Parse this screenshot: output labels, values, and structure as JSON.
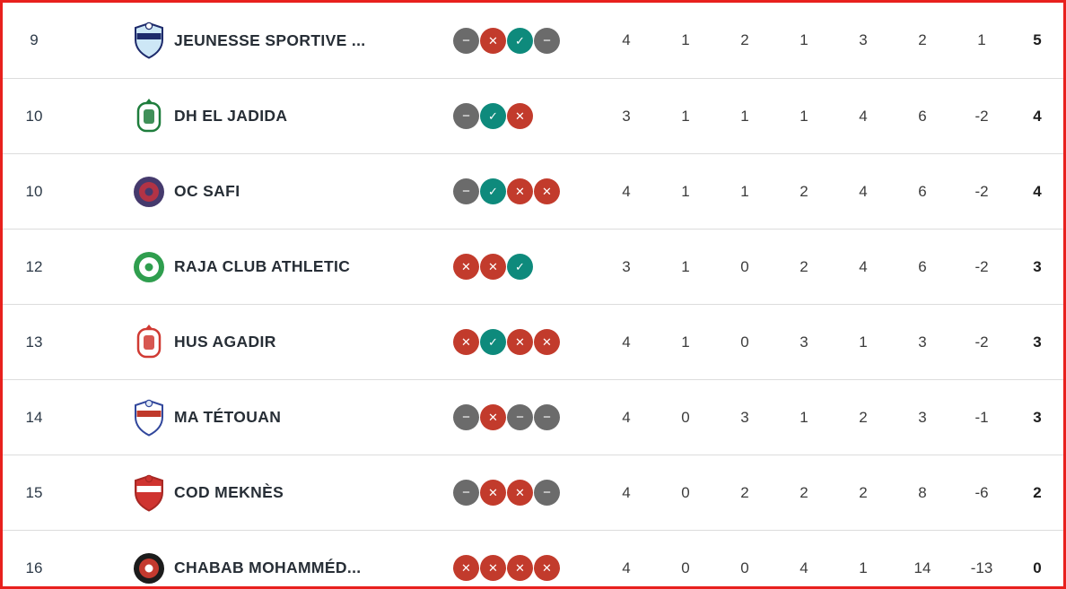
{
  "page": {
    "border_color": "#e8201d",
    "background": "#ffffff",
    "separator_color": "#dcdcdc"
  },
  "legend": {
    "win_symbol": "✓",
    "loss_symbol": "✕",
    "draw_symbol": "−"
  },
  "colors": {
    "win": "#0e8a7c",
    "loss": "#c23b2c",
    "draw": "#6b6b6b"
  },
  "standings": {
    "rows": [
      {
        "rank": "9",
        "club": "JEUNESSE SPORTIVE ...",
        "logo": "js-soualem-crest",
        "form": [
          "draw",
          "loss",
          "win",
          "draw"
        ],
        "played": "4",
        "wins": "1",
        "draws": "2",
        "losses": "1",
        "goals_for": "3",
        "goals_against": "2",
        "goal_diff": "1",
        "points": "5"
      },
      {
        "rank": "10",
        "club": "DH EL JADIDA",
        "logo": "dh-el-jadida-crest",
        "form": [
          "draw",
          "win",
          "loss"
        ],
        "played": "3",
        "wins": "1",
        "draws": "1",
        "losses": "1",
        "goals_for": "4",
        "goals_against": "6",
        "goal_diff": "-2",
        "points": "4"
      },
      {
        "rank": "10",
        "club": "OC SAFI",
        "logo": "oc-safi-crest",
        "form": [
          "draw",
          "win",
          "loss",
          "loss"
        ],
        "played": "4",
        "wins": "1",
        "draws": "1",
        "losses": "2",
        "goals_for": "4",
        "goals_against": "6",
        "goal_diff": "-2",
        "points": "4"
      },
      {
        "rank": "12",
        "club": "RAJA CLUB ATHLETIC",
        "logo": "raja-crest",
        "form": [
          "loss",
          "loss",
          "win"
        ],
        "played": "3",
        "wins": "1",
        "draws": "0",
        "losses": "2",
        "goals_for": "4",
        "goals_against": "6",
        "goal_diff": "-2",
        "points": "3"
      },
      {
        "rank": "13",
        "club": "HUS AGADIR",
        "logo": "hus-agadir-crest",
        "form": [
          "loss",
          "win",
          "loss",
          "loss"
        ],
        "played": "4",
        "wins": "1",
        "draws": "0",
        "losses": "3",
        "goals_for": "1",
        "goals_against": "3",
        "goal_diff": "-2",
        "points": "3"
      },
      {
        "rank": "14",
        "club": "MA TÉTOUAN",
        "logo": "ma-tetouan-crest",
        "form": [
          "draw",
          "loss",
          "draw",
          "draw"
        ],
        "played": "4",
        "wins": "0",
        "draws": "3",
        "losses": "1",
        "goals_for": "2",
        "goals_against": "3",
        "goal_diff": "-1",
        "points": "3"
      },
      {
        "rank": "15",
        "club": "COD MEKNÈS",
        "logo": "cod-meknes-crest",
        "form": [
          "draw",
          "loss",
          "loss",
          "draw"
        ],
        "played": "4",
        "wins": "0",
        "draws": "2",
        "losses": "2",
        "goals_for": "2",
        "goals_against": "8",
        "goal_diff": "-6",
        "points": "2"
      },
      {
        "rank": "16",
        "club": "CHABAB MOHAMMÉD...",
        "logo": "chabab-mohammedia-crest",
        "form": [
          "loss",
          "loss",
          "loss",
          "loss"
        ],
        "played": "4",
        "wins": "0",
        "draws": "0",
        "losses": "4",
        "goals_for": "1",
        "goals_against": "14",
        "goal_diff": "-13",
        "points": "0"
      }
    ]
  },
  "logo_styles": {
    "js-soualem-crest": {
      "shape": "shield",
      "c1": "#cde7f6",
      "c2": "#1d2a6b",
      "c3": "#1d2a6b",
      "c4": "#ffffff"
    },
    "dh-el-jadida-crest": {
      "shape": "crest",
      "c1": "#ffffff",
      "c2": "#1e7d3c",
      "c3": "#1e7d3c",
      "c4": "#1e7d3c"
    },
    "oc-safi-crest": {
      "shape": "circle",
      "c1": "#453a6d",
      "c2": "#b23345",
      "c3": "#453a6d",
      "c4": "#b23345"
    },
    "raja-crest": {
      "shape": "circle",
      "c1": "#2f9e4e",
      "c2": "#ffffff",
      "c3": "#2f9e4e",
      "c4": "#2f9e4e"
    },
    "hus-agadir-crest": {
      "shape": "crest",
      "c1": "#ffffff",
      "c2": "#d03a33",
      "c3": "#d03a33",
      "c4": "#d03a33"
    },
    "ma-tetouan-crest": {
      "shape": "shield",
      "c1": "#ffffff",
      "c2": "#31479c",
      "c3": "#c0392b",
      "c4": "#dfe8f5"
    },
    "cod-meknes-crest": {
      "shape": "shield",
      "c1": "#cf3430",
      "c2": "#a72824",
      "c3": "#ffffff",
      "c4": "#cf3430"
    },
    "chabab-mohammedia-crest": {
      "shape": "circle",
      "c1": "#1c1c1c",
      "c2": "#c43a2f",
      "c3": "#ffffff",
      "c4": "#1c1c1c"
    }
  }
}
